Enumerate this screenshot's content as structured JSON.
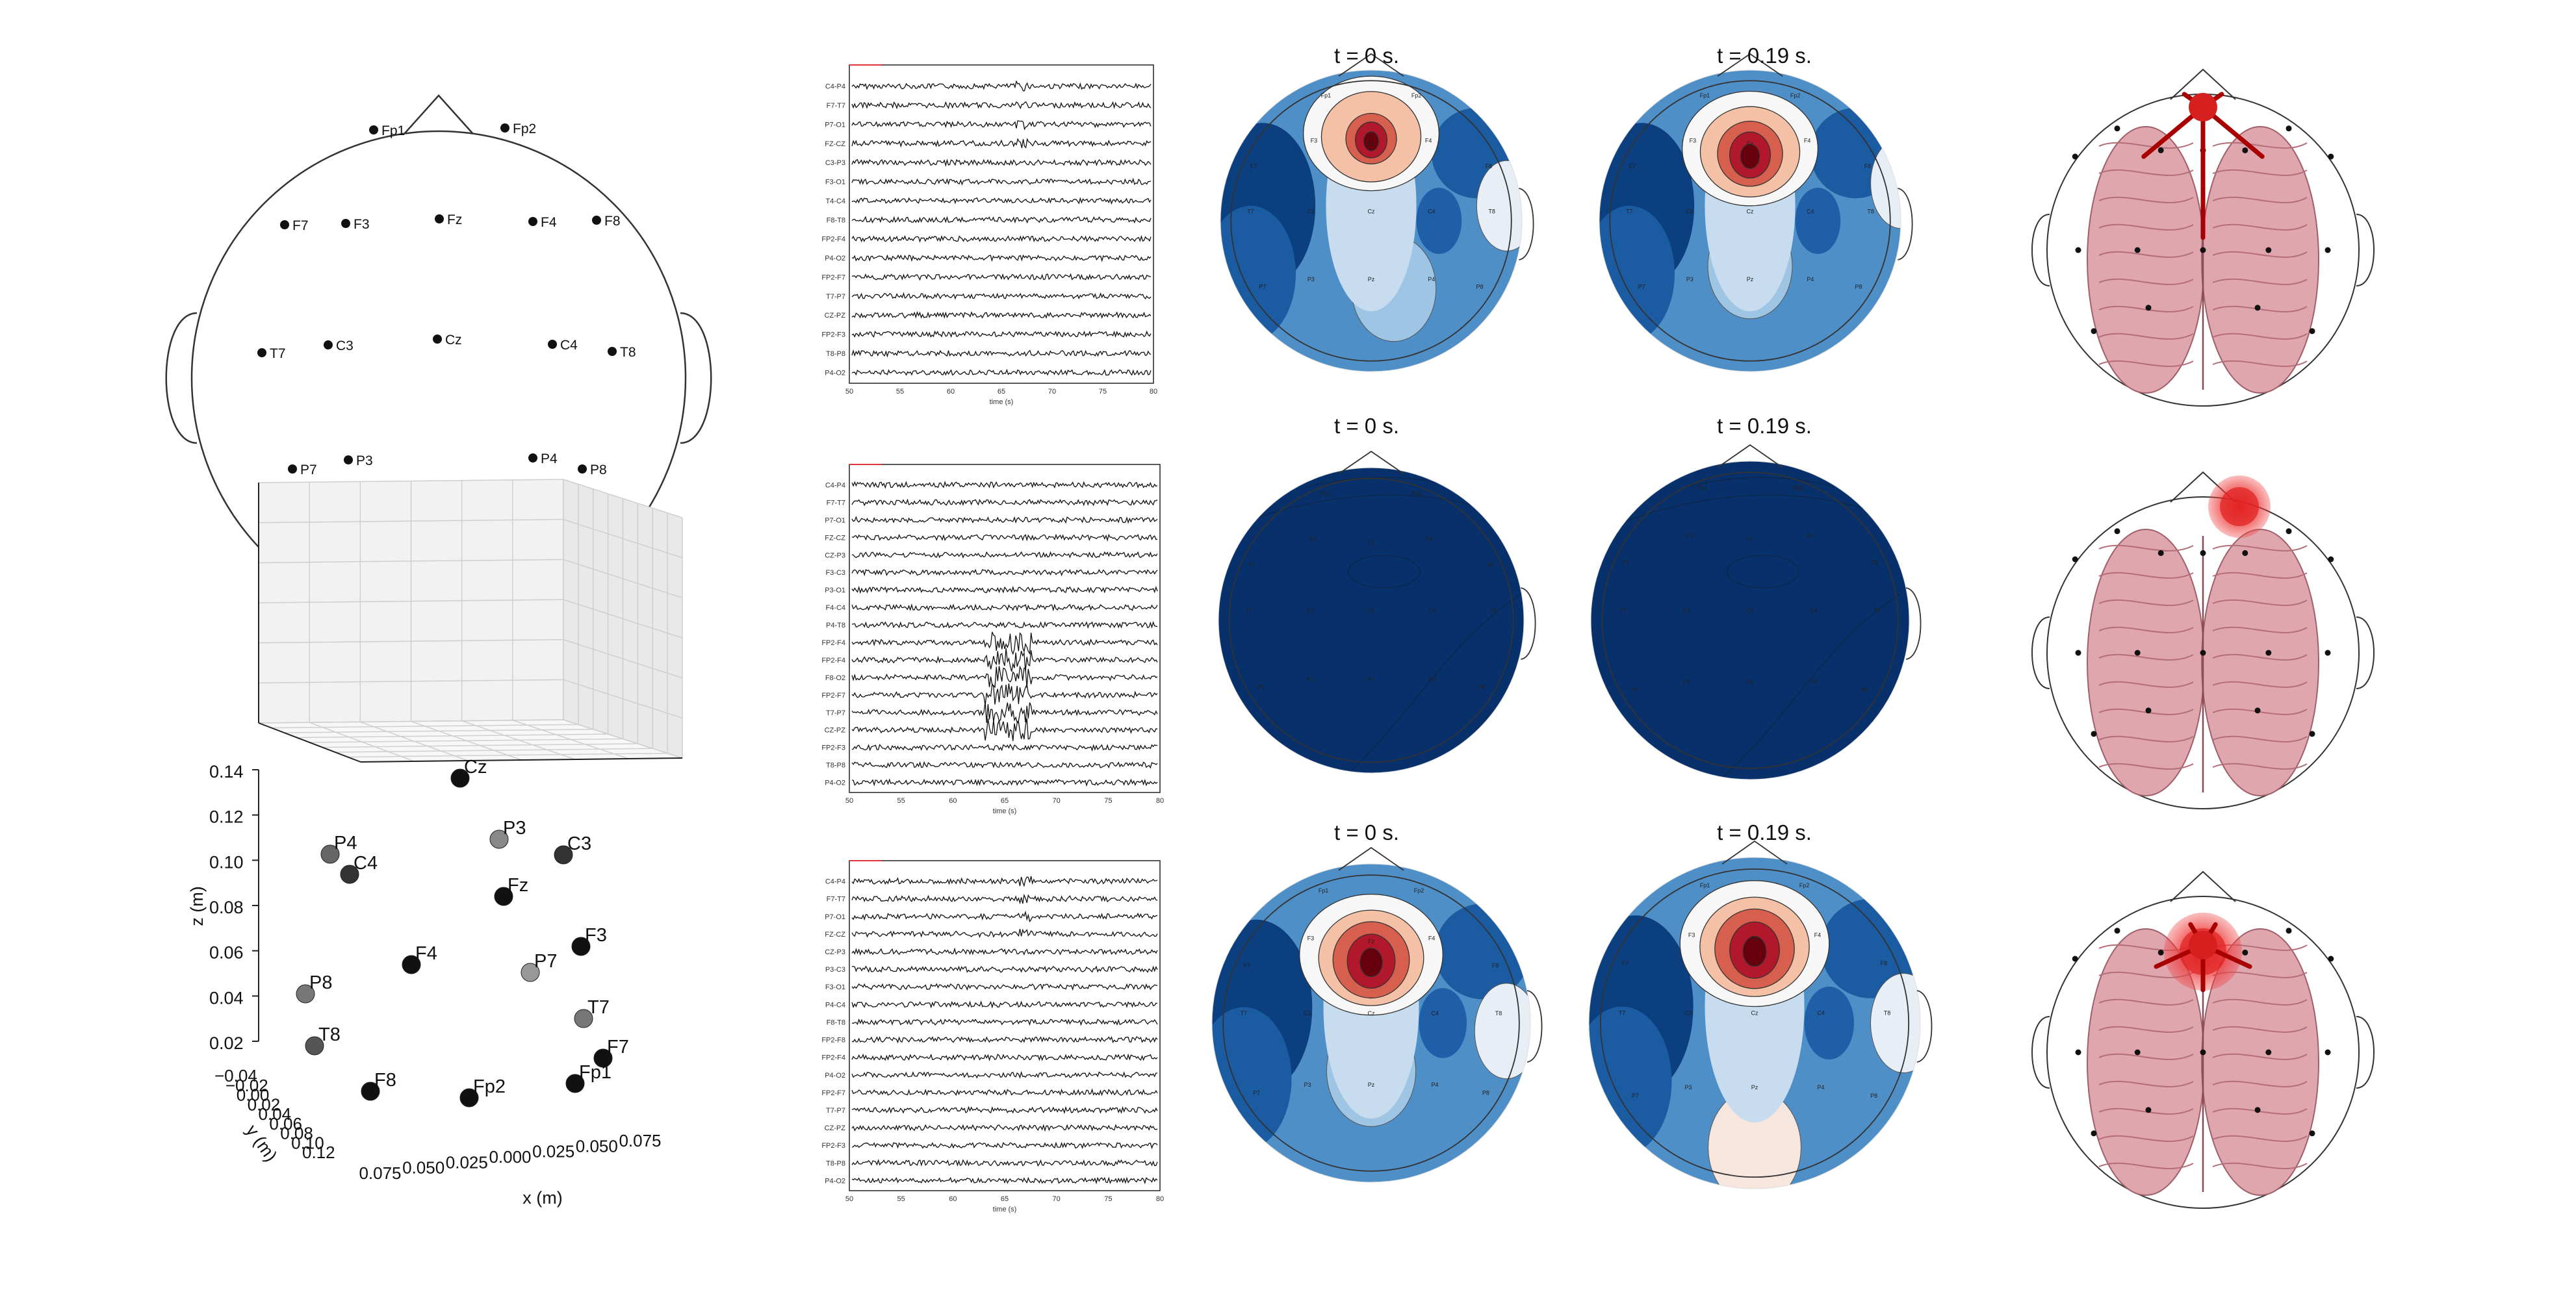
{
  "colors": {
    "map_low": "#08306b",
    "map_mid": "#4f8fc8",
    "map_white": "#f7f7f7",
    "map_high": "#67000d",
    "brain": "#e0a6ae",
    "arrow": "#a80000",
    "glow": "#ee3333"
  },
  "montage_2d": {
    "electrodes": [
      {
        "label": "Fp1"
      },
      {
        "label": "Fp2"
      },
      {
        "label": "F7"
      },
      {
        "label": "F3"
      },
      {
        "label": "Fz"
      },
      {
        "label": "F4"
      },
      {
        "label": "F8"
      },
      {
        "label": "T7"
      },
      {
        "label": "C3"
      },
      {
        "label": "Cz"
      },
      {
        "label": "C4"
      },
      {
        "label": "T8"
      },
      {
        "label": "P7"
      },
      {
        "label": "P3"
      },
      {
        "label": "P4"
      },
      {
        "label": "P8"
      }
    ]
  },
  "montage_3d": {
    "z_label": "z (m)",
    "y_label": "y (m)",
    "x_label": "x (m)",
    "z_ticks": [
      "0.14",
      "0.12",
      "0.10",
      "0.08",
      "0.06",
      "0.04",
      "0.02"
    ],
    "y_ticks": [
      "−0.04",
      "−0.02",
      "0.00",
      "0.02",
      "0.04",
      "0.06",
      "0.08",
      "0.10",
      "0.12"
    ],
    "x_ticks": [
      "0.075",
      "0.050",
      "0.025",
      "0.000",
      "0.025",
      "0.050",
      "0.075"
    ],
    "points": [
      {
        "label": "Cz"
      },
      {
        "label": "P4"
      },
      {
        "label": "C4"
      },
      {
        "label": "P3"
      },
      {
        "label": "C3"
      },
      {
        "label": "Fz"
      },
      {
        "label": "F4"
      },
      {
        "label": "P7"
      },
      {
        "label": "F3"
      },
      {
        "label": "P8"
      },
      {
        "label": "T7"
      },
      {
        "label": "T8"
      },
      {
        "label": "F7"
      },
      {
        "label": "F8"
      },
      {
        "label": "Fp2"
      },
      {
        "label": "Fp1"
      }
    ]
  },
  "eeg_rows": [
    {
      "channels": [
        "C4-P4",
        "F7-T7",
        "P7-O1",
        "FZ-CZ",
        "C3-P3",
        "F3-O1",
        "T4-C4",
        "F8-T8",
        "FP2-F4",
        "P4-O2",
        "FP2-F7",
        "T7-P7",
        "CZ-PZ",
        "FP2-F3",
        "T8-P8",
        "P4-O2"
      ],
      "xticks": [
        "50",
        "55",
        "60",
        "65",
        "70",
        "75",
        "80"
      ],
      "xlabel": "time (s)"
    },
    {
      "channels": [
        "C4-P4",
        "F7-T7",
        "P7-O1",
        "FZ-CZ",
        "CZ-P3",
        "F3-C3",
        "P3-O1",
        "F4-C4",
        "P4-T8",
        "FP2-F4",
        "FP2-F4",
        "F8-O2",
        "FP2-F7",
        "T7-P7",
        "CZ-PZ",
        "FP2-F3",
        "T8-P8",
        "P4-O2"
      ],
      "xticks": [
        "50",
        "55",
        "60",
        "65",
        "70",
        "75",
        "80"
      ],
      "xlabel": "time (s)"
    },
    {
      "channels": [
        "C4-P4",
        "F7-T7",
        "P7-O1",
        "FZ-CZ",
        "CZ-P3",
        "P3-C3",
        "F3-O1",
        "P4-C4",
        "F8-T8",
        "FP2-F8",
        "FP2-F4",
        "P4-O2",
        "FP2-F7",
        "T7-P7",
        "CZ-PZ",
        "FP2-F3",
        "T8-P8",
        "P4-O2"
      ],
      "xticks": [
        "50",
        "55",
        "60",
        "65",
        "70",
        "75",
        "80"
      ],
      "xlabel": "time (s)"
    }
  ],
  "topomaps": [
    {
      "title": "t = 0 s."
    },
    {
      "title": "t = 0.19 s."
    },
    {
      "title": "t = 0 s."
    },
    {
      "title": "t = 0.19 s."
    },
    {
      "title": "t = 0 s."
    },
    {
      "title": "t = 0.19 s."
    }
  ],
  "topo_labels": [
    "Fp1",
    "Fp2",
    "F3",
    "Fz",
    "F4",
    "F7",
    "F8",
    "C3",
    "Cz",
    "C4",
    "T7",
    "T8",
    "P3",
    "Pz",
    "P4",
    "P7",
    "P8"
  ],
  "brains": [
    {
      "variant": "arrows"
    },
    {
      "variant": "glow"
    },
    {
      "variant": "glow-arrows"
    }
  ]
}
